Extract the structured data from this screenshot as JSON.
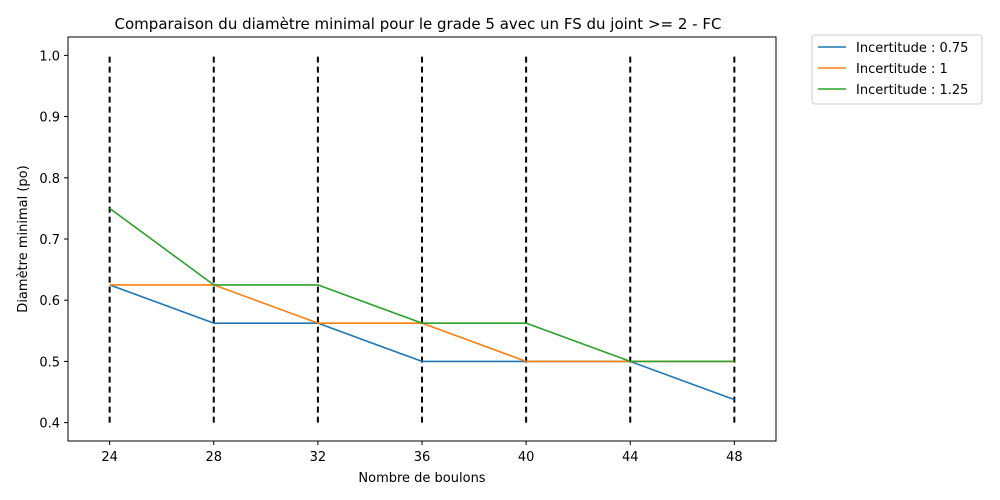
{
  "chart_data": {
    "type": "line",
    "title": "Comparaison du diamètre minimal pour le grade 5  avec un FS du joint >= 2 - FC",
    "xlabel": "Nombre de boulons",
    "ylabel": "Diamètre minimal (po)",
    "x": [
      24,
      28,
      32,
      36,
      40,
      44,
      48
    ],
    "xlim": [
      22.4,
      49.6
    ],
    "ylim": [
      0.37,
      1.03
    ],
    "xticks": [
      "24",
      "28",
      "32",
      "36",
      "40",
      "44",
      "48"
    ],
    "yticks": [
      "0.4",
      "0.5",
      "0.6",
      "0.7",
      "0.8",
      "0.9",
      "1.0"
    ],
    "grid": false,
    "legend_position": "outside-top-right",
    "vlines": {
      "x": [
        24,
        28,
        32,
        36,
        40,
        44,
        48
      ],
      "ymin": 0.4,
      "ymax": 1.0,
      "color": "#000000",
      "style": "dashed"
    },
    "series": [
      {
        "name": "Incertitude : 0.75",
        "color": "#1f77b4",
        "values": [
          0.625,
          0.5625,
          0.5625,
          0.5,
          0.5,
          0.5,
          0.4375
        ]
      },
      {
        "name": "Incertitude : 1",
        "color": "#ff7f0e",
        "values": [
          0.625,
          0.625,
          0.5625,
          0.5625,
          0.5,
          0.5,
          0.5
        ]
      },
      {
        "name": "Incertitude : 1.25",
        "color": "#2ca02c",
        "values": [
          0.75,
          0.625,
          0.625,
          0.5625,
          0.5625,
          0.5,
          0.5
        ]
      }
    ]
  }
}
